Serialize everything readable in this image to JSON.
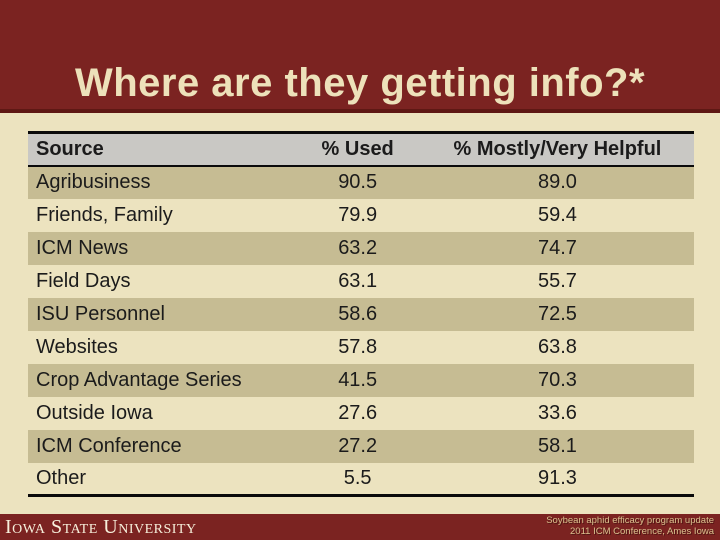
{
  "title": "Where are they getting info?*",
  "table": {
    "columns": [
      "Source",
      "% Used",
      "% Mostly/Very Helpful"
    ],
    "rows": [
      [
        "Agribusiness",
        "90.5",
        "89.0"
      ],
      [
        "Friends, Family",
        "79.9",
        "59.4"
      ],
      [
        "ICM News",
        "63.2",
        "74.7"
      ],
      [
        "Field Days",
        "63.1",
        "55.7"
      ],
      [
        "ISU Personnel",
        "58.6",
        "72.5"
      ],
      [
        "Websites",
        "57.8",
        "63.8"
      ],
      [
        "Crop Advantage Series",
        "41.5",
        "70.3"
      ],
      [
        "Outside Iowa",
        "27.6",
        "33.6"
      ],
      [
        "ICM Conference",
        "27.2",
        "58.1"
      ],
      [
        "Other",
        "5.5",
        "91.3"
      ]
    ]
  },
  "footer": {
    "logo_text": "Iowa State University",
    "credit_line1": "Soybean aphid efficacy program update",
    "credit_line2": "2011 ICM Conference, Ames Iowa"
  },
  "colors": {
    "maroon": "#7B2321",
    "maroon_dark_border": "#5E1814",
    "cream_background": "#ECE3BF",
    "row_dark_tan": "#C6BC93",
    "header_gray": "#C9C8C4",
    "title_text": "#EDE1BA",
    "credit_text": "#D9C08E",
    "wordmark_text": "#F6EFDB",
    "table_border_black": "#0A0A0A"
  },
  "chart_data": {
    "type": "table",
    "title": "Where are they getting info?*",
    "categories": [
      "Agribusiness",
      "Friends, Family",
      "ICM News",
      "Field Days",
      "ISU Personnel",
      "Websites",
      "Crop Advantage Series",
      "Outside Iowa",
      "ICM Conference",
      "Other"
    ],
    "series": [
      {
        "name": "% Used",
        "values": [
          90.5,
          79.9,
          63.2,
          63.1,
          58.6,
          57.8,
          41.5,
          27.6,
          27.2,
          5.5
        ]
      },
      {
        "name": "% Mostly/Very Helpful",
        "values": [
          89.0,
          59.4,
          74.7,
          55.7,
          72.5,
          63.8,
          70.3,
          33.6,
          58.1,
          91.3
        ]
      }
    ]
  }
}
